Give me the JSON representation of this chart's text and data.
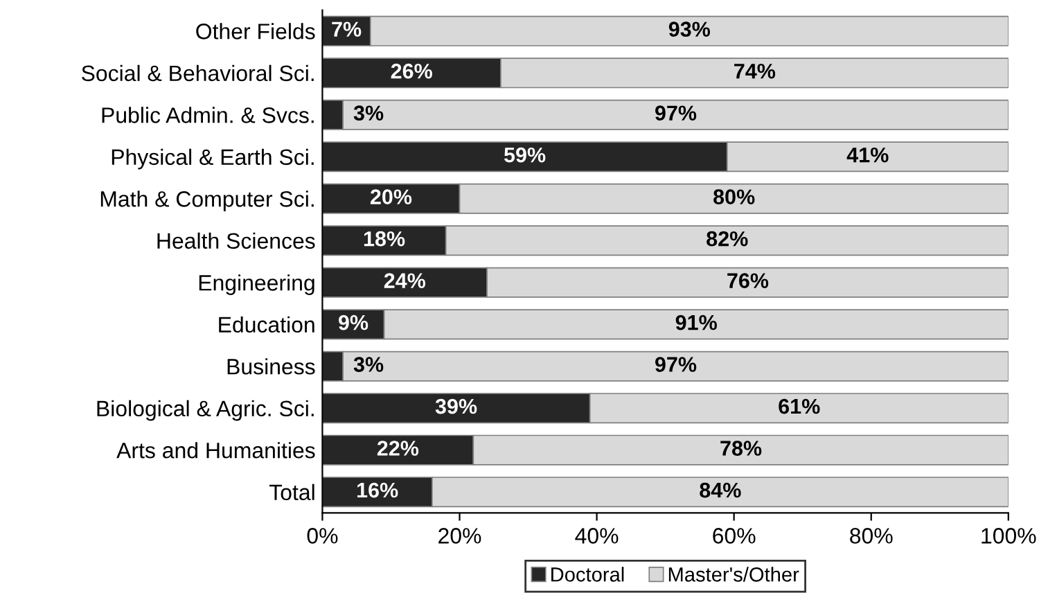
{
  "chart_data": {
    "type": "bar",
    "orientation": "horizontal",
    "stacked": true,
    "categories": [
      "Other Fields",
      "Social & Behavioral Sci.",
      "Public Admin. & Svcs.",
      "Physical & Earth Sci.",
      "Math & Computer Sci.",
      "Health Sciences",
      "Engineering",
      "Education",
      "Business",
      "Biological & Agric. Sci.",
      "Arts and Humanities",
      "Total"
    ],
    "series": [
      {
        "name": "Doctoral",
        "color": "#262626",
        "values": [
          7,
          26,
          3,
          59,
          20,
          18,
          24,
          9,
          3,
          39,
          22,
          16
        ],
        "value_labels": [
          "7%",
          "26%",
          "3%",
          "59%",
          "20%",
          "18%",
          "24%",
          "9%",
          "3%",
          "39%",
          "22%",
          "16%"
        ]
      },
      {
        "name": "Master's/Other",
        "color": "#d9d9d9",
        "values": [
          93,
          74,
          97,
          41,
          80,
          82,
          76,
          91,
          97,
          61,
          78,
          84
        ],
        "value_labels": [
          "93%",
          "74%",
          "97%",
          "41%",
          "80%",
          "82%",
          "76%",
          "91%",
          "97%",
          "61%",
          "78%",
          "84%"
        ]
      }
    ],
    "xlim": [
      0,
      100
    ],
    "xticks": [
      {
        "value": 0,
        "label": "0%"
      },
      {
        "value": 20,
        "label": "20%"
      },
      {
        "value": 40,
        "label": "40%"
      },
      {
        "value": 60,
        "label": "60%"
      },
      {
        "value": 80,
        "label": "80%"
      },
      {
        "value": 100,
        "label": "100%"
      }
    ],
    "grid": false,
    "legend": "bottom"
  }
}
